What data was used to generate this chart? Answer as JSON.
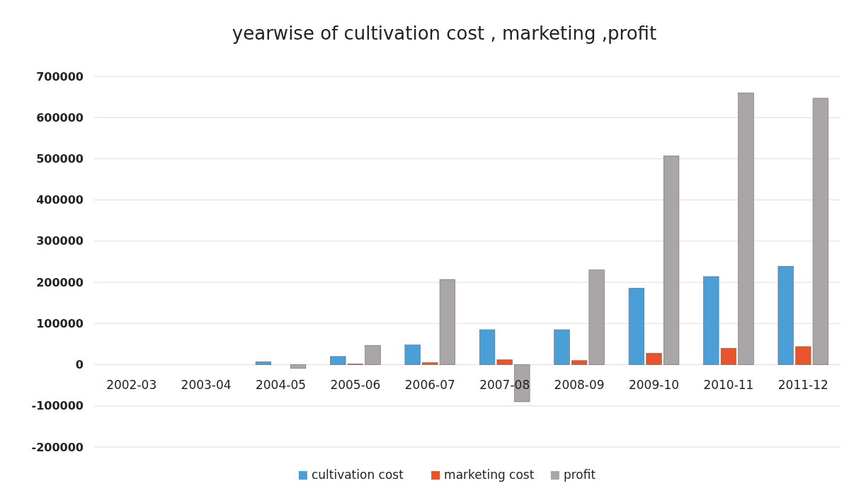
{
  "chart_data": {
    "type": "bar",
    "title": "yearwise of cultivation  cost , marketing ,profit",
    "categories": [
      "2002-03",
      "2003-04",
      "2004-05",
      "2005-06",
      "2006-07",
      "2007-08",
      "2008-09",
      "2009-10",
      "2010-11",
      "2011-12"
    ],
    "series": [
      {
        "name": "cultivation cost",
        "color": "#4a9fd8",
        "values": [
          0,
          0,
          7000,
          20000,
          48000,
          85000,
          85000,
          186000,
          214000,
          239000
        ]
      },
      {
        "name": "marketing cost",
        "color": "#e8552a",
        "values": [
          0,
          0,
          0,
          2000,
          5000,
          12000,
          10000,
          28000,
          40000,
          44000
        ]
      },
      {
        "name": "profit",
        "color": "#aaa6a7",
        "values": [
          0,
          0,
          -9000,
          47000,
          207000,
          -90000,
          230000,
          507000,
          660000,
          647000
        ]
      }
    ],
    "ylim": [
      -200000,
      700000
    ],
    "yticks": [
      -200000,
      -100000,
      0,
      100000,
      200000,
      300000,
      400000,
      500000,
      600000,
      700000
    ],
    "grid": "y",
    "legend": "bottom"
  }
}
